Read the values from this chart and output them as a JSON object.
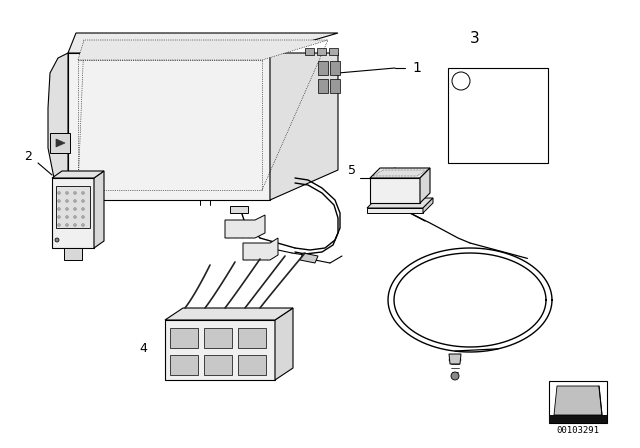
{
  "background_color": "#ffffff",
  "line_color": "#000000",
  "diagram_id": "00103291",
  "fig_width": 6.4,
  "fig_height": 4.48,
  "dpi": 100
}
